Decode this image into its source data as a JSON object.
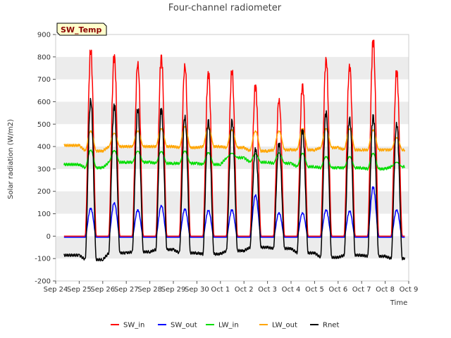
{
  "chart_data": {
    "type": "line",
    "title": "Four-channel radiometer",
    "xlabel": "Time",
    "ylabel": "Solar radiation (W/m2)",
    "ylim": [
      -200,
      900
    ],
    "yticks": [
      -200,
      -100,
      0,
      100,
      200,
      300,
      400,
      500,
      600,
      700,
      800,
      900
    ],
    "xlim": [
      "2023-09-24",
      "2023-10-09"
    ],
    "xtick_labels": [
      "Sep 24",
      "Sep 25",
      "Sep 26",
      "Sep 27",
      "Sep 28",
      "Sep 29",
      "Sep 30",
      "Oct 1",
      "Oct 2",
      "Oct 3",
      "Oct 4",
      "Oct 5",
      "Oct 6",
      "Oct 7",
      "Oct 8",
      "Oct 9"
    ],
    "grid": "horizontal bands",
    "legend_position": "bottom",
    "tag_label": "SW_Temp",
    "days": [
      "Sep 24",
      "Sep 25",
      "Sep 26",
      "Sep 27",
      "Sep 28",
      "Sep 29",
      "Sep 30",
      "Oct 1",
      "Oct 2",
      "Oct 3",
      "Oct 4",
      "Oct 5",
      "Oct 6",
      "Oct 7",
      "Oct 8"
    ],
    "series": [
      {
        "name": "SW_in",
        "color": "#ff0000",
        "daily_peak": [
          0,
          830,
          810,
          780,
          808,
          770,
          735,
          740,
          675,
          615,
          680,
          798,
          768,
          875,
          738
        ],
        "night": 0
      },
      {
        "name": "SW_out",
        "color": "#0000ff",
        "daily_peak": [
          0,
          125,
          150,
          118,
          138,
          122,
          115,
          118,
          185,
          105,
          105,
          118,
          112,
          220,
          118
        ],
        "night": -5
      },
      {
        "name": "LW_in",
        "color": "#00dd00",
        "daily_peak": [
          0,
          385,
          382,
          380,
          378,
          380,
          373,
          370,
          368,
          372,
          370,
          355,
          355,
          370,
          330
        ],
        "night": [
          320,
          305,
          330,
          330,
          325,
          325,
          320,
          350,
          330,
          325,
          310,
          305,
          305,
          300,
          310
        ]
      },
      {
        "name": "LW_out",
        "color": "#ffa500",
        "daily_peak": [
          0,
          470,
          460,
          470,
          480,
          490,
          490,
          475,
          470,
          470,
          480,
          480,
          480,
          475,
          440
        ],
        "night": [
          405,
          380,
          400,
          400,
          400,
          395,
          400,
          395,
          380,
          385,
          385,
          395,
          385,
          385,
          385
        ]
      },
      {
        "name": "Rnet",
        "color": "#000000",
        "daily_peak": [
          0,
          615,
          590,
          568,
          570,
          540,
          520,
          522,
          395,
          415,
          475,
          560,
          532,
          542,
          508
        ],
        "night": [
          -85,
          -105,
          -75,
          -70,
          -60,
          -75,
          -80,
          -65,
          -50,
          -55,
          -75,
          -95,
          -85,
          -90,
          -100
        ]
      }
    ]
  }
}
